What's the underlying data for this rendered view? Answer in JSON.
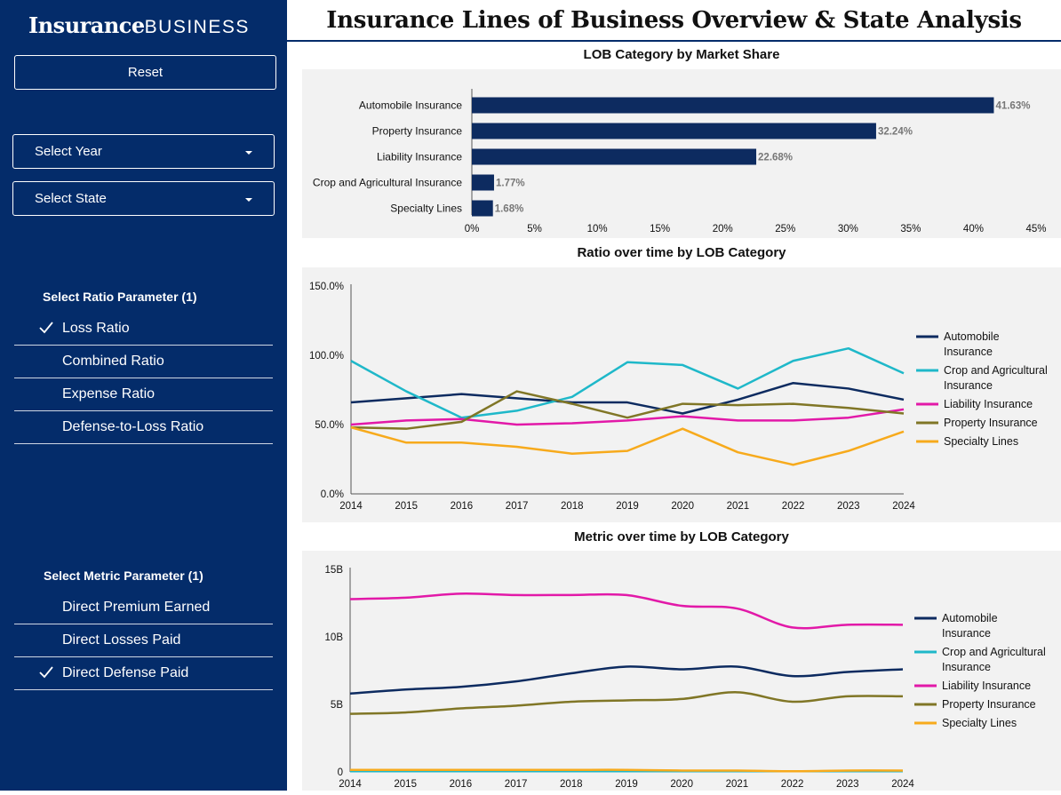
{
  "sidebar": {
    "logo_bold": "Insurance",
    "logo_light": "BUSINESS",
    "reset_label": "Reset",
    "year_dropdown": "Select Year",
    "state_dropdown": "Select State",
    "ratio_title": "Select Ratio Parameter (1)",
    "ratio_items": [
      {
        "label": "Loss Ratio",
        "selected": true
      },
      {
        "label": "Combined Ratio",
        "selected": false
      },
      {
        "label": "Expense Ratio",
        "selected": false
      },
      {
        "label": "Defense-to-Loss Ratio",
        "selected": false
      }
    ],
    "metric_title": "Select Metric Parameter (1)",
    "metric_items": [
      {
        "label": "Direct Premium Earned",
        "selected": false
      },
      {
        "label": "Direct Losses Paid",
        "selected": false
      },
      {
        "label": "Direct Defense Paid",
        "selected": true
      }
    ]
  },
  "page_title": "Insurance Lines of Business Overview & State Analysis",
  "colors": {
    "sidebar_bg": "#042c6a",
    "automobile": "#0d2b60",
    "crop": "#1fb8c9",
    "liability": "#e219a8",
    "property": "#807626",
    "specialty": "#f7aa1c",
    "bar": "#0d2b60"
  },
  "chart_data": [
    {
      "type": "bar",
      "orientation": "horizontal",
      "title": "LOB Category by Market Share",
      "categories": [
        "Automobile Insurance",
        "Property Insurance",
        "Liability Insurance",
        "Crop and Agricultural Insurance",
        "Specialty Lines"
      ],
      "values": [
        41.63,
        32.24,
        22.68,
        1.77,
        1.68
      ],
      "labels": [
        "41.63%",
        "32.24%",
        "22.68%",
        "1.77%",
        "1.68%"
      ],
      "xlim": [
        0,
        45
      ],
      "xticks": [
        "0%",
        "5%",
        "10%",
        "15%",
        "20%",
        "25%",
        "30%",
        "35%",
        "40%",
        "45%"
      ]
    },
    {
      "type": "line",
      "title": "Ratio over time by LOB Category",
      "x": [
        "2014",
        "2015",
        "2016",
        "2017",
        "2018",
        "2019",
        "2020",
        "2021",
        "2022",
        "2023",
        "2024"
      ],
      "ylim": [
        0,
        150
      ],
      "yticks": [
        "0.0%",
        "50.0%",
        "100.0%",
        "150.0%"
      ],
      "yticks_values": [
        0,
        50,
        100,
        150
      ],
      "legend": "right",
      "series": [
        {
          "name": "Automobile Insurance",
          "legend_lines": [
            "Automobile",
            "Insurance"
          ],
          "key": "automobile",
          "values": [
            66,
            69,
            72,
            69,
            66,
            66,
            58,
            68,
            80,
            76,
            68
          ]
        },
        {
          "name": "Crop and Agricultural Insurance",
          "legend_lines": [
            "Crop and Agricultural",
            "Insurance"
          ],
          "key": "crop",
          "values": [
            96,
            74,
            55,
            60,
            70,
            95,
            93,
            76,
            96,
            105,
            87
          ]
        },
        {
          "name": "Liability Insurance",
          "legend_lines": [
            "Liability Insurance"
          ],
          "key": "liability",
          "values": [
            50,
            53,
            54,
            50,
            51,
            53,
            56,
            53,
            53,
            55,
            61
          ]
        },
        {
          "name": "Property Insurance",
          "legend_lines": [
            "Property Insurance"
          ],
          "key": "property",
          "values": [
            48,
            47,
            52,
            74,
            65,
            55,
            65,
            64,
            65,
            62,
            58
          ]
        },
        {
          "name": "Specialty Lines",
          "legend_lines": [
            "Specialty Lines"
          ],
          "key": "specialty",
          "values": [
            48,
            37,
            37,
            34,
            29,
            31,
            47,
            30,
            21,
            31,
            45
          ]
        }
      ]
    },
    {
      "type": "line",
      "title": "Metric over time by LOB Category",
      "x": [
        "2014",
        "2015",
        "2016",
        "2017",
        "2018",
        "2019",
        "2020",
        "2021",
        "2022",
        "2023",
        "2024"
      ],
      "ylim": [
        0,
        15
      ],
      "yticks": [
        "0",
        "5B",
        "10B",
        "15B"
      ],
      "yticks_values": [
        0,
        5,
        10,
        15
      ],
      "legend": "right",
      "series": [
        {
          "name": "Automobile Insurance",
          "legend_lines": [
            "Automobile",
            "Insurance"
          ],
          "key": "automobile",
          "values": [
            5.8,
            6.1,
            6.3,
            6.7,
            7.3,
            7.8,
            7.6,
            7.8,
            7.1,
            7.4,
            7.6
          ]
        },
        {
          "name": "Crop and Agricultural Insurance",
          "legend_lines": [
            "Crop and Agricultural",
            "Insurance"
          ],
          "key": "crop",
          "values": [
            0.05,
            0.05,
            0.05,
            0.05,
            0.05,
            0.05,
            0.05,
            0.05,
            0.05,
            0.05,
            0.05
          ]
        },
        {
          "name": "Liability Insurance",
          "legend_lines": [
            "Liability Insurance"
          ],
          "key": "liability",
          "values": [
            12.8,
            12.9,
            13.2,
            13.1,
            13.1,
            13.1,
            12.3,
            12.1,
            10.7,
            10.9,
            10.9
          ]
        },
        {
          "name": "Property Insurance",
          "legend_lines": [
            "Property Insurance"
          ],
          "key": "property",
          "values": [
            4.3,
            4.4,
            4.7,
            4.9,
            5.2,
            5.3,
            5.4,
            5.9,
            5.2,
            5.6,
            5.6
          ]
        },
        {
          "name": "Specialty Lines",
          "legend_lines": [
            "Specialty Lines"
          ],
          "key": "specialty",
          "values": [
            0.15,
            0.15,
            0.15,
            0.15,
            0.15,
            0.15,
            0.1,
            0.1,
            0.05,
            0.1,
            0.1
          ]
        }
      ]
    }
  ]
}
